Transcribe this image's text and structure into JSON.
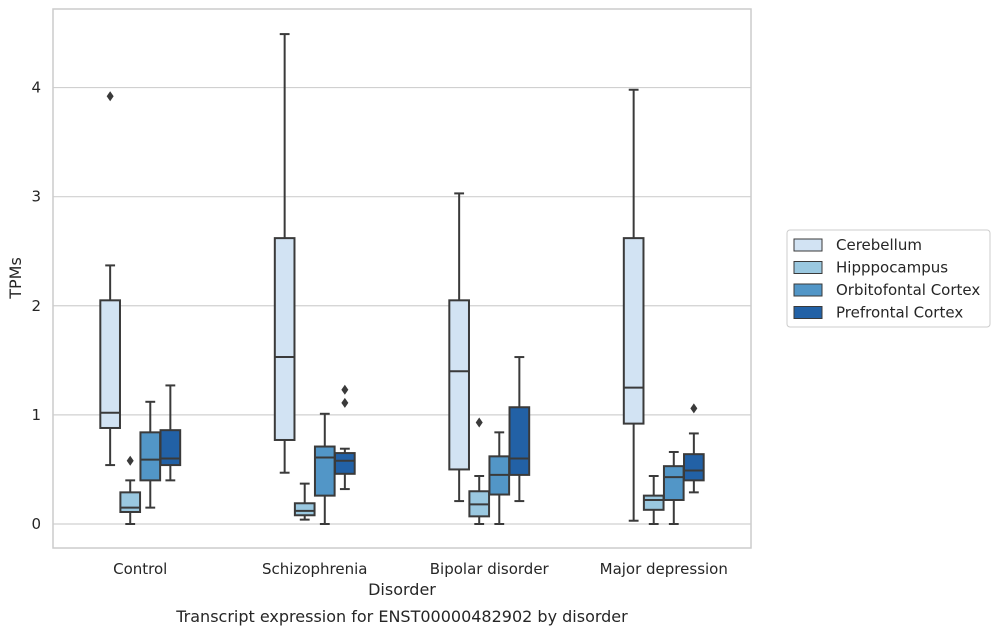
{
  "caption": "Transcript expression for ENST00000482902 by disorder",
  "chart_data": {
    "type": "boxplot",
    "xlabel": "Disorder",
    "ylabel": "TPMs",
    "categories": [
      "Control",
      "Schizophrenia",
      "Bipolar disorder",
      "Major depression"
    ],
    "ylim": [
      -0.22,
      4.72
    ],
    "yticks": [
      "0",
      "1",
      "2",
      "3",
      "4"
    ],
    "grid": "horizontal",
    "legend_position": "right",
    "series": [
      {
        "name": "Cerebellum",
        "color": "#d2e3f3",
        "boxes": [
          {
            "whisker_low": 0.54,
            "q1": 0.88,
            "median": 1.02,
            "q3": 2.05,
            "whisker_high": 2.37,
            "outliers": [
              3.92
            ]
          },
          {
            "whisker_low": 0.47,
            "q1": 0.77,
            "median": 1.53,
            "q3": 2.62,
            "whisker_high": 4.49,
            "outliers": []
          },
          {
            "whisker_low": 0.21,
            "q1": 0.5,
            "median": 1.4,
            "q3": 2.05,
            "whisker_high": 3.03,
            "outliers": []
          },
          {
            "whisker_low": 0.03,
            "q1": 0.92,
            "median": 1.25,
            "q3": 2.62,
            "whisker_high": 3.98,
            "outliers": []
          }
        ]
      },
      {
        "name": "Hipppocampus",
        "color": "#9ac8e0",
        "boxes": [
          {
            "whisker_low": 0.0,
            "q1": 0.11,
            "median": 0.15,
            "q3": 0.29,
            "whisker_high": 0.4,
            "outliers": [
              0.58
            ]
          },
          {
            "whisker_low": 0.04,
            "q1": 0.08,
            "median": 0.12,
            "q3": 0.19,
            "whisker_high": 0.37,
            "outliers": []
          },
          {
            "whisker_low": 0.0,
            "q1": 0.07,
            "median": 0.18,
            "q3": 0.3,
            "whisker_high": 0.44,
            "outliers": [
              0.93
            ]
          },
          {
            "whisker_low": 0.0,
            "q1": 0.13,
            "median": 0.22,
            "q3": 0.26,
            "whisker_high": 0.44,
            "outliers": []
          }
        ]
      },
      {
        "name": "Orbitofontal Cortex",
        "color": "#5296c7",
        "boxes": [
          {
            "whisker_low": 0.15,
            "q1": 0.4,
            "median": 0.59,
            "q3": 0.84,
            "whisker_high": 1.12,
            "outliers": []
          },
          {
            "whisker_low": 0.0,
            "q1": 0.26,
            "median": 0.61,
            "q3": 0.71,
            "whisker_high": 1.01,
            "outliers": []
          },
          {
            "whisker_low": 0.0,
            "q1": 0.27,
            "median": 0.45,
            "q3": 0.62,
            "whisker_high": 0.84,
            "outliers": []
          },
          {
            "whisker_low": 0.0,
            "q1": 0.22,
            "median": 0.43,
            "q3": 0.53,
            "whisker_high": 0.66,
            "outliers": []
          }
        ]
      },
      {
        "name": "Prefrontal Cortex",
        "color": "#2261a6",
        "boxes": [
          {
            "whisker_low": 0.4,
            "q1": 0.54,
            "median": 0.6,
            "q3": 0.86,
            "whisker_high": 1.27,
            "outliers": []
          },
          {
            "whisker_low": 0.32,
            "q1": 0.46,
            "median": 0.58,
            "q3": 0.65,
            "whisker_high": 0.69,
            "outliers": [
              1.11,
              1.23
            ]
          },
          {
            "whisker_low": 0.21,
            "q1": 0.45,
            "median": 0.6,
            "q3": 1.07,
            "whisker_high": 1.53,
            "outliers": []
          },
          {
            "whisker_low": 0.29,
            "q1": 0.4,
            "median": 0.49,
            "q3": 0.64,
            "whisker_high": 0.83,
            "outliers": [
              1.06
            ]
          }
        ]
      }
    ]
  }
}
